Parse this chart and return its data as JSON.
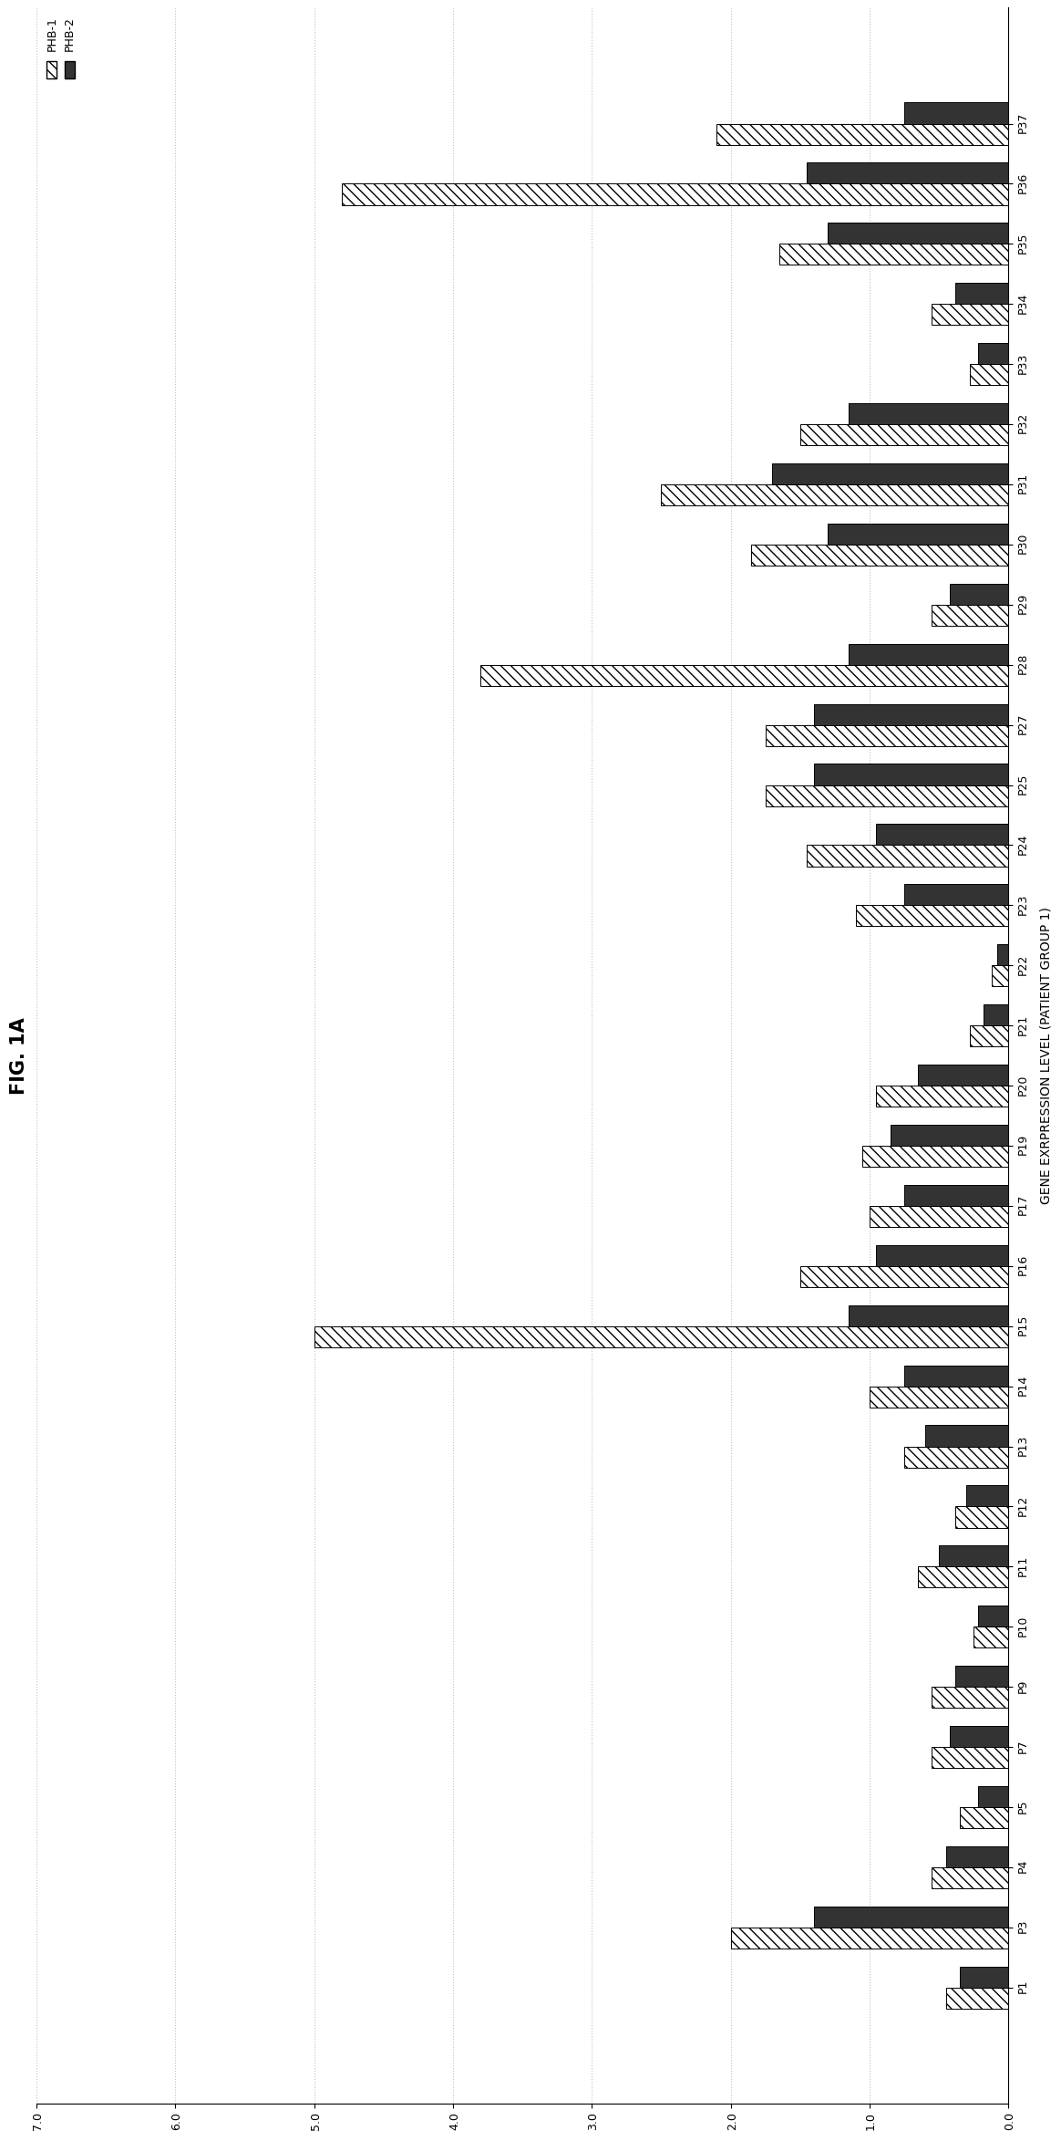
{
  "title": "FIG. 1A",
  "xlabel": "GENE EXRPRESSION LEVEL (PATIENT GROUP 1)",
  "ylim": [
    0,
    7.0
  ],
  "yticks": [
    0.0,
    1.0,
    2.0,
    3.0,
    4.0,
    5.0,
    6.0,
    7.0
  ],
  "categories": [
    "P1",
    "P3",
    "P4",
    "P5",
    "P7",
    "P9",
    "P10",
    "P11",
    "P12",
    "P13",
    "P14",
    "P15",
    "P16",
    "P17",
    "P19",
    "P20",
    "P21",
    "P22",
    "P23",
    "P24",
    "P25",
    "P27",
    "P28",
    "P29",
    "P30",
    "P31",
    "P32",
    "P33",
    "P34",
    "P35",
    "P36",
    "P37"
  ],
  "PHB1": [
    0.45,
    2.0,
    0.55,
    0.35,
    0.55,
    0.55,
    0.25,
    0.65,
    0.38,
    0.75,
    1.0,
    5.0,
    1.5,
    1.0,
    1.05,
    0.95,
    0.28,
    0.12,
    1.1,
    1.45,
    1.75,
    1.75,
    3.8,
    0.55,
    1.85,
    2.5,
    1.5,
    0.28,
    0.55,
    1.65,
    4.8,
    2.1
  ],
  "PHB2": [
    0.35,
    1.4,
    0.45,
    0.22,
    0.42,
    0.38,
    0.22,
    0.5,
    0.3,
    0.6,
    0.75,
    1.15,
    0.95,
    0.75,
    0.85,
    0.65,
    0.18,
    0.08,
    0.75,
    0.95,
    1.4,
    1.4,
    1.15,
    0.42,
    1.3,
    1.7,
    1.15,
    0.22,
    0.38,
    1.3,
    1.45,
    0.75
  ],
  "background_color": "#ffffff",
  "bar_width": 0.35,
  "hatch_pattern": "///",
  "phb2_color": "#333333",
  "grid_color": "#bbbbbb",
  "fontsize_title": 15,
  "fontsize_labels": 10,
  "fontsize_ticks": 9,
  "legend_fontsize": 9
}
